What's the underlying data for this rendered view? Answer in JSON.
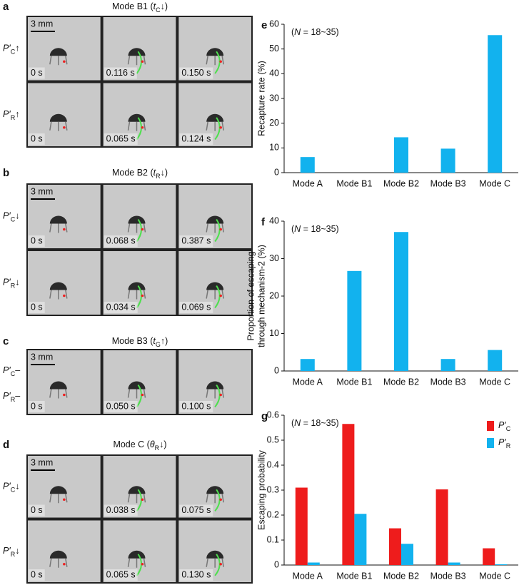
{
  "image_panels": [
    {
      "letter": "a",
      "title": [
        "Mode B1 (",
        "t",
        "C",
        "↓)"
      ],
      "scale_bar": "3 mm",
      "row_labels": [
        [
          "P′",
          "C",
          "↑"
        ],
        [
          "P′",
          "R",
          "↑"
        ]
      ],
      "rows": [
        [
          "0 s",
          "0.116 s",
          "0.150 s"
        ],
        [
          "0 s",
          "0.065 s",
          "0.124 s"
        ]
      ]
    },
    {
      "letter": "b",
      "title": [
        "Mode B2 (",
        "t",
        "R",
        "↓)"
      ],
      "scale_bar": "3 mm",
      "row_labels": [
        [
          "P′",
          "C",
          "↓"
        ],
        [
          "P′",
          "R",
          "↓"
        ]
      ],
      "rows": [
        [
          "0 s",
          "0.068 s",
          "0.387 s"
        ],
        [
          "0 s",
          "0.034 s",
          "0.069 s"
        ]
      ]
    },
    {
      "letter": "c",
      "title": [
        "Mode B3 (",
        "t",
        "G",
        "↑)"
      ],
      "scale_bar": "3 mm",
      "row_labels": [
        [
          "P′",
          "C",
          "–"
        ],
        [
          "P′",
          "R",
          "–"
        ]
      ],
      "rows": [
        [
          "0 s",
          "0.050 s",
          "0.100 s"
        ]
      ]
    },
    {
      "letter": "d",
      "title": [
        "Mode C (",
        "θ",
        "R",
        "↓)"
      ],
      "scale_bar": "3 mm",
      "row_labels": [
        [
          "P′",
          "C",
          "↓"
        ],
        [
          "P′",
          "R",
          "↓"
        ]
      ],
      "rows": [
        [
          "0 s",
          "0.038 s",
          "0.075 s"
        ],
        [
          "0 s",
          "0.065 s",
          "0.130 s"
        ]
      ]
    }
  ],
  "chart_data": [
    {
      "type": "bar",
      "letter": "e",
      "annotation": [
        "(",
        "N",
        " = 18~35)"
      ],
      "ylabel": "Recapture rate (%)",
      "categories": [
        "Mode A",
        "Mode B1",
        "Mode B2",
        "Mode B3",
        "Mode C"
      ],
      "values": [
        6.3,
        0,
        14.3,
        9.7,
        55.6
      ],
      "color": "#12b2ee",
      "ylim": [
        0,
        60
      ],
      "yticks": [
        0,
        10,
        20,
        30,
        40,
        50,
        60
      ]
    },
    {
      "type": "bar",
      "letter": "f",
      "annotation": [
        "(",
        "N",
        " = 18~35)"
      ],
      "ylabel": [
        "Proportion of escaping",
        "through mechanism-2 (%)"
      ],
      "categories": [
        "Mode A",
        "Mode B1",
        "Mode B2",
        "Mode B3",
        "Mode C"
      ],
      "values": [
        3.2,
        26.7,
        37.1,
        3.2,
        5.6
      ],
      "color": "#12b2ee",
      "ylim": [
        0,
        40
      ],
      "yticks": [
        0,
        10,
        20,
        30,
        40
      ]
    },
    {
      "type": "grouped_bar",
      "letter": "g",
      "annotation": [
        "(",
        "N",
        " = 18~35)"
      ],
      "ylabel": "Escaping probability",
      "categories": [
        "Mode A",
        "Mode B1",
        "Mode B2",
        "Mode B3",
        "Mode C"
      ],
      "series": [
        {
          "name": "P′C",
          "color": "#ee1c1c",
          "values": [
            0.31,
            0.565,
            0.147,
            0.303,
            0.067
          ]
        },
        {
          "name": "P′R",
          "color": "#12b2ee",
          "values": [
            0.01,
            0.205,
            0.085,
            0.01,
            0.003
          ]
        }
      ],
      "legend": "top-right",
      "ylim": [
        0,
        0.6
      ],
      "yticks": [
        0,
        0.1,
        0.2,
        0.3,
        0.4,
        0.5,
        0.6
      ]
    }
  ]
}
